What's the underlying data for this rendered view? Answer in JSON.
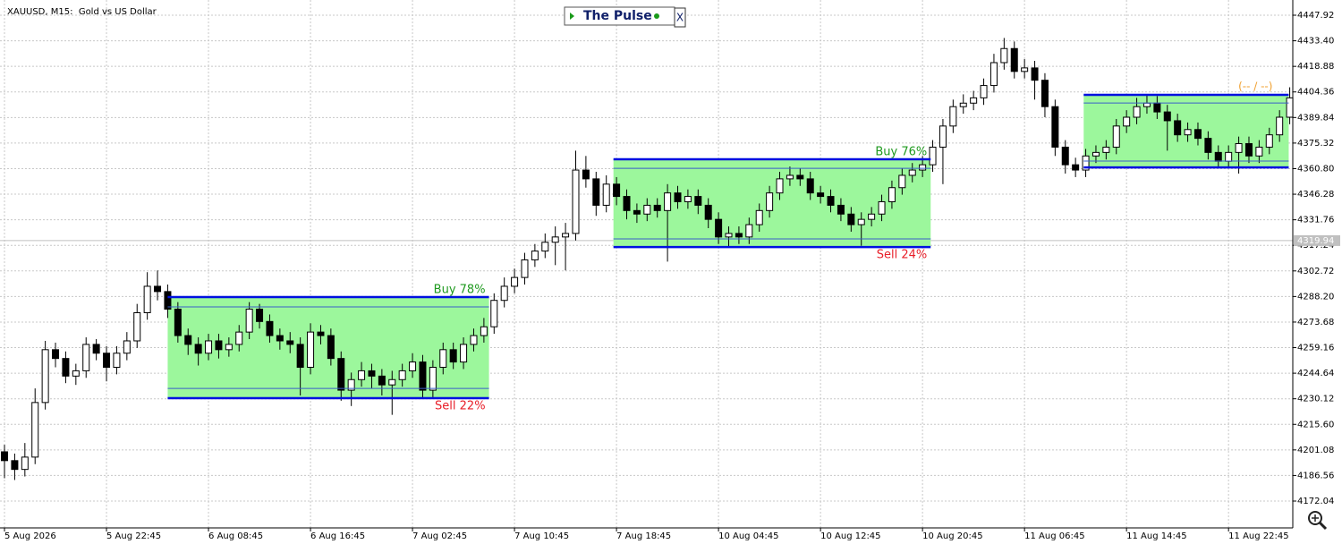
{
  "chart_data": {
    "type": "candlestick",
    "title": "XAUUSD, M15:  Gold vs US Dollar",
    "ohlc": [
      [
        4200,
        4204,
        4185,
        4195
      ],
      [
        4195,
        4199,
        4184,
        4190
      ],
      [
        4190,
        4205,
        4186,
        4197
      ],
      [
        4197,
        4236,
        4193,
        4228
      ],
      [
        4228,
        4263,
        4224,
        4258
      ],
      [
        4258,
        4262,
        4248,
        4253
      ],
      [
        4253,
        4257,
        4239,
        4243
      ],
      [
        4243,
        4250,
        4238,
        4246
      ],
      [
        4246,
        4265,
        4242,
        4261
      ],
      [
        4261,
        4264,
        4252,
        4256
      ],
      [
        4256,
        4260,
        4240,
        4248
      ],
      [
        4248,
        4260,
        4244,
        4256
      ],
      [
        4256,
        4268,
        4252,
        4263
      ],
      [
        4263,
        4284,
        4259,
        4279
      ],
      [
        4279,
        4302,
        4275,
        4294
      ],
      [
        4294,
        4303,
        4286,
        4291
      ],
      [
        4291,
        4295,
        4276,
        4281
      ],
      [
        4281,
        4285,
        4262,
        4266
      ],
      [
        4266,
        4270,
        4255,
        4261
      ],
      [
        4261,
        4265,
        4249,
        4256
      ],
      [
        4256,
        4267,
        4252,
        4263
      ],
      [
        4263,
        4267,
        4253,
        4258
      ],
      [
        4258,
        4265,
        4254,
        4261
      ],
      [
        4261,
        4272,
        4257,
        4268
      ],
      [
        4268,
        4285,
        4264,
        4281
      ],
      [
        4281,
        4284,
        4270,
        4274
      ],
      [
        4274,
        4278,
        4262,
        4266
      ],
      [
        4266,
        4270,
        4258,
        4263
      ],
      [
        4263,
        4268,
        4256,
        4261
      ],
      [
        4261,
        4265,
        4232,
        4248
      ],
      [
        4248,
        4273,
        4244,
        4268
      ],
      [
        4268,
        4272,
        4261,
        4266
      ],
      [
        4266,
        4270,
        4249,
        4253
      ],
      [
        4253,
        4257,
        4229,
        4235
      ],
      [
        4235,
        4245,
        4226,
        4241
      ],
      [
        4241,
        4251,
        4237,
        4246
      ],
      [
        4246,
        4250,
        4236,
        4243
      ],
      [
        4243,
        4247,
        4232,
        4238
      ],
      [
        4238,
        4246,
        4221,
        4241
      ],
      [
        4241,
        4250,
        4237,
        4246
      ],
      [
        4246,
        4256,
        4242,
        4251
      ],
      [
        4251,
        4255,
        4230,
        4235
      ],
      [
        4235,
        4252,
        4231,
        4248
      ],
      [
        4248,
        4262,
        4244,
        4258
      ],
      [
        4258,
        4262,
        4247,
        4251
      ],
      [
        4251,
        4265,
        4247,
        4261
      ],
      [
        4261,
        4270,
        4257,
        4266
      ],
      [
        4266,
        4276,
        4262,
        4271
      ],
      [
        4271,
        4290,
        4267,
        4286
      ],
      [
        4286,
        4299,
        4282,
        4294
      ],
      [
        4294,
        4304,
        4290,
        4299
      ],
      [
        4299,
        4313,
        4295,
        4309
      ],
      [
        4309,
        4318,
        4305,
        4314
      ],
      [
        4314,
        4324,
        4310,
        4319
      ],
      [
        4319,
        4328,
        4306,
        4322
      ],
      [
        4322,
        4330,
        4303,
        4324
      ],
      [
        4324,
        4371,
        4320,
        4360
      ],
      [
        4360,
        4368,
        4350,
        4355
      ],
      [
        4355,
        4359,
        4334,
        4340
      ],
      [
        4340,
        4357,
        4336,
        4352
      ],
      [
        4352,
        4356,
        4340,
        4345
      ],
      [
        4345,
        4349,
        4332,
        4337
      ],
      [
        4337,
        4341,
        4330,
        4335
      ],
      [
        4335,
        4344,
        4331,
        4340
      ],
      [
        4340,
        4344,
        4333,
        4337
      ],
      [
        4337,
        4352,
        4308,
        4347
      ],
      [
        4347,
        4351,
        4338,
        4342
      ],
      [
        4342,
        4349,
        4338,
        4345
      ],
      [
        4345,
        4349,
        4335,
        4340
      ],
      [
        4340,
        4344,
        4327,
        4332
      ],
      [
        4332,
        4336,
        4318,
        4322
      ],
      [
        4322,
        4328,
        4316,
        4324
      ],
      [
        4324,
        4328,
        4318,
        4322
      ],
      [
        4322,
        4333,
        4318,
        4329
      ],
      [
        4329,
        4341,
        4325,
        4337
      ],
      [
        4337,
        4351,
        4333,
        4347
      ],
      [
        4347,
        4359,
        4343,
        4355
      ],
      [
        4355,
        4362,
        4351,
        4357
      ],
      [
        4357,
        4361,
        4351,
        4355
      ],
      [
        4355,
        4359,
        4343,
        4347
      ],
      [
        4347,
        4351,
        4341,
        4345
      ],
      [
        4345,
        4349,
        4336,
        4340
      ],
      [
        4340,
        4344,
        4331,
        4335
      ],
      [
        4335,
        4339,
        4325,
        4329
      ],
      [
        4329,
        4336,
        4317,
        4332
      ],
      [
        4332,
        4339,
        4328,
        4335
      ],
      [
        4335,
        4346,
        4331,
        4342
      ],
      [
        4342,
        4354,
        4338,
        4350
      ],
      [
        4350,
        4361,
        4346,
        4357
      ],
      [
        4357,
        4364,
        4353,
        4360
      ],
      [
        4360,
        4368,
        4356,
        4363
      ],
      [
        4363,
        4377,
        4359,
        4373
      ],
      [
        4373,
        4389,
        4352,
        4385
      ],
      [
        4385,
        4400,
        4381,
        4396
      ],
      [
        4396,
        4403,
        4392,
        4398
      ],
      [
        4398,
        4405,
        4394,
        4401
      ],
      [
        4401,
        4412,
        4397,
        4408
      ],
      [
        4408,
        4426,
        4404,
        4421
      ],
      [
        4421,
        4435,
        4417,
        4429
      ],
      [
        4429,
        4433,
        4412,
        4416
      ],
      [
        4416,
        4423,
        4412,
        4418
      ],
      [
        4418,
        4422,
        4400,
        4411
      ],
      [
        4411,
        4415,
        4390,
        4396
      ],
      [
        4396,
        4400,
        4368,
        4373
      ],
      [
        4373,
        4377,
        4358,
        4363
      ],
      [
        4363,
        4367,
        4356,
        4360
      ],
      [
        4360,
        4372,
        4356,
        4368
      ],
      [
        4368,
        4374,
        4364,
        4370
      ],
      [
        4370,
        4377,
        4366,
        4373
      ],
      [
        4373,
        4389,
        4369,
        4385
      ],
      [
        4385,
        4394,
        4381,
        4390
      ],
      [
        4390,
        4401,
        4386,
        4396
      ],
      [
        4396,
        4403,
        4392,
        4398
      ],
      [
        4398,
        4402,
        4389,
        4393
      ],
      [
        4393,
        4397,
        4371,
        4388
      ],
      [
        4388,
        4392,
        4376,
        4380
      ],
      [
        4380,
        4387,
        4376,
        4383
      ],
      [
        4383,
        4387,
        4374,
        4378
      ],
      [
        4378,
        4382,
        4366,
        4370
      ],
      [
        4370,
        4374,
        4361,
        4365
      ],
      [
        4365,
        4374,
        4361,
        4370
      ],
      [
        4370,
        4379,
        4358,
        4375
      ],
      [
        4375,
        4379,
        4364,
        4368
      ],
      [
        4368,
        4377,
        4364,
        4373
      ],
      [
        4373,
        4384,
        4369,
        4380
      ],
      [
        4380,
        4394,
        4376,
        4390
      ],
      [
        4390,
        4407,
        4386,
        4401
      ]
    ],
    "xlim": [
      -0.44,
      126.3
    ],
    "xticks": [
      {
        "value": 0,
        "label": "5 Aug 2026"
      },
      {
        "value": 10,
        "label": "5 Aug 22:45"
      },
      {
        "value": 20,
        "label": "6 Aug 08:45"
      },
      {
        "value": 30,
        "label": "6 Aug 16:45"
      },
      {
        "value": 40,
        "label": "7 Aug 02:45"
      },
      {
        "value": 50,
        "label": "7 Aug 10:45"
      },
      {
        "value": 60,
        "label": "7 Aug 18:45"
      },
      {
        "value": 70,
        "label": "10 Aug 04:45"
      },
      {
        "value": 80,
        "label": "10 Aug 12:45"
      },
      {
        "value": 90,
        "label": "10 Aug 20:45"
      },
      {
        "value": 100,
        "label": "11 Aug 06:45"
      },
      {
        "value": 110,
        "label": "11 Aug 14:45"
      },
      {
        "value": 120,
        "label": "11 Aug 22:45"
      }
    ],
    "ylim": [
      4156.8,
      4456.56
    ],
    "yticks": [
      4447.92,
      {
        "value": 4433.4,
        "label": "4433.40"
      },
      4418.88,
      4404.36,
      4389.84,
      4375.32,
      {
        "value": 4360.8,
        "label": "4360.80"
      },
      4346.28,
      4331.76,
      4317.24,
      4302.72,
      {
        "value": 4288.2,
        "label": "4288.20"
      },
      4273.68,
      4259.16,
      4244.64,
      4230.12,
      {
        "value": 4215.6,
        "label": "4215.60"
      },
      4201.08,
      4186.56,
      4172.04
    ],
    "grid": true,
    "last_price": 4319.94,
    "zones": [
      {
        "x": [
          16,
          47.5
        ],
        "y": [
          4230.5,
          4287.9
        ],
        "inner": [
          4236,
          4282.3
        ],
        "buy": "Buy 78%",
        "sell": "Sell 22%"
      },
      {
        "x": [
          59.7,
          90.8
        ],
        "y": [
          4316.3,
          4366.1
        ],
        "inner": [
          4320.9,
          4361
        ],
        "buy": "Buy 76%",
        "sell": "Sell 24%"
      },
      {
        "x": [
          105.8,
          125.9
        ],
        "y": [
          4361.5,
          4402.7
        ],
        "inner": [
          4365.1,
          4398.1
        ],
        "note": "(-- / --)"
      }
    ]
  },
  "widget": {
    "name": "The Pulse",
    "close": "X"
  }
}
